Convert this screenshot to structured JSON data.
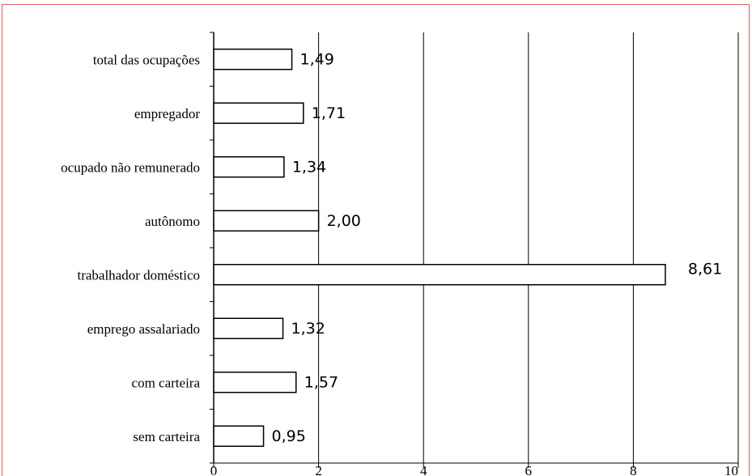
{
  "chart_data": {
    "type": "bar",
    "orientation": "horizontal",
    "categories": [
      "total das ocupações",
      "empregador",
      "ocupado não remunerado",
      "autônomo",
      "trabalhador doméstico",
      "emprego assalariado",
      "com carteira",
      "sem carteira"
    ],
    "values": [
      1.49,
      1.71,
      1.34,
      2.0,
      8.61,
      1.32,
      1.57,
      0.95
    ],
    "value_labels": [
      "1,49",
      "1,71",
      "1,34",
      "2,00",
      "8,61",
      "1,32",
      "1,57",
      "0,95"
    ],
    "xlim": [
      0,
      10
    ],
    "x_ticks": [
      0,
      2,
      4,
      6,
      8,
      10
    ],
    "grid": "vertical",
    "legend": "none",
    "colors": {
      "bar_fill": "#ffffff",
      "bar_stroke": "#000000",
      "grid": "#000000",
      "frame": "#e06060"
    }
  }
}
